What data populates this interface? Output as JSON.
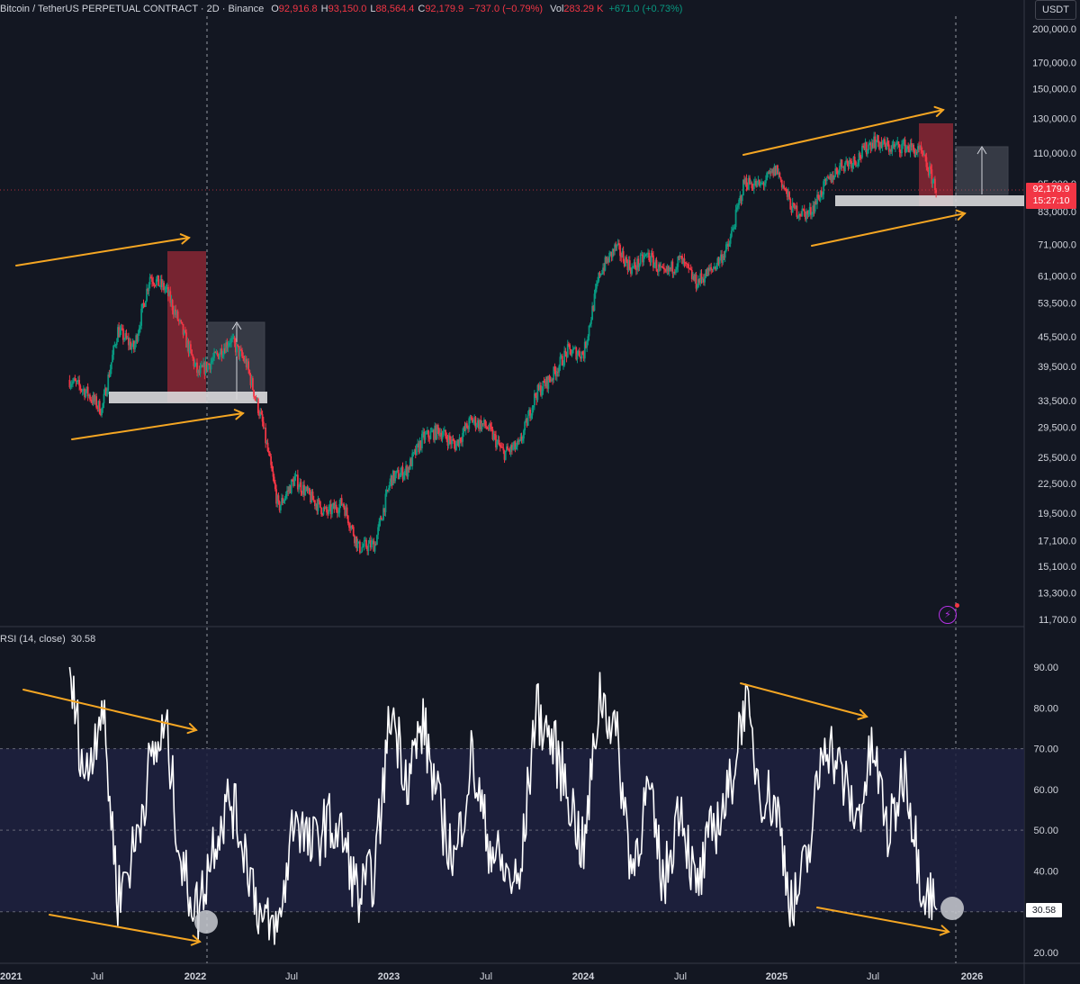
{
  "header": {
    "symbol": "Bitcoin / TetherUS PERPETUAL CONTRACT · 2D · Binance",
    "o_label": "O",
    "o_value": "92,916.8",
    "h_label": "H",
    "h_value": "93,150.0",
    "l_label": "L",
    "l_value": "88,564.4",
    "c_label": "C",
    "c_value": "92,179.9",
    "change": "−737.0 (−0.79%)",
    "vol_label": "Vol",
    "vol_value": "283.29 K",
    "vol_change": "+671.0 (+0.73%)"
  },
  "currency": "USDT",
  "last_price": {
    "price": "92,179.9",
    "countdown": "15:27:10"
  },
  "rsi_label": {
    "name": "RSI (14, close)",
    "value": "30.58"
  },
  "rsi_badge": "30.58",
  "colors": {
    "background": "#131722",
    "up": "#089981",
    "down": "#f23645",
    "rsi_line": "#ffffff",
    "rsi_band": "#1e2140",
    "arrow": "#f5a623",
    "grid_line": "#363a45"
  },
  "chart_data": [
    {
      "type": "line",
      "title": "",
      "scale": "log",
      "ylim": [
        11700,
        200000
      ],
      "y_ticks": [
        "200,000.0",
        "170,000.0",
        "150,000.0",
        "130,000.0",
        "110,000.0",
        "95,000.0",
        "83,000.0",
        "71,000.0",
        "61,000.0",
        "53,500.0",
        "45,500.0",
        "39,500.0",
        "33,500.0",
        "29,500.0",
        "25,500.0",
        "22,500.0",
        "19,500.0",
        "17,100.0",
        "15,100.0",
        "13,300.0",
        "11,700.0"
      ],
      "x_ticks": [
        "2021",
        "Jul",
        "2022",
        "Jul",
        "2023",
        "Jul",
        "2024",
        "Jul",
        "2025",
        "Jul",
        "2026"
      ],
      "series": [
        {
          "values_note": "approximate BTC price path (candles rendered as a price line)",
          "x": [
            "2021-05",
            "2021-06",
            "2021-07",
            "2021-08",
            "2021-09",
            "2021-10",
            "2021-11",
            "2021-12",
            "2022-01",
            "2022-02",
            "2022-03",
            "2022-04",
            "2022-05",
            "2022-06",
            "2022-07",
            "2022-08",
            "2022-09",
            "2022-10",
            "2022-11",
            "2022-12",
            "2023-01",
            "2023-02",
            "2023-03",
            "2023-04",
            "2023-05",
            "2023-06",
            "2023-07",
            "2023-08",
            "2023-09",
            "2023-10",
            "2023-11",
            "2023-12",
            "2024-01",
            "2024-02",
            "2024-03",
            "2024-04",
            "2024-05",
            "2024-06",
            "2024-07",
            "2024-08",
            "2024-09",
            "2024-10",
            "2024-11",
            "2024-12",
            "2025-01",
            "2025-02",
            "2025-03",
            "2025-04",
            "2025-05",
            "2025-06",
            "2025-07",
            "2025-08",
            "2025-09",
            "2025-10",
            "2025-11"
          ],
          "values": [
            37000,
            35000,
            32000,
            47000,
            43000,
            61000,
            57000,
            47000,
            38000,
            41000,
            45000,
            40000,
            30000,
            20000,
            23000,
            21000,
            19500,
            20500,
            16500,
            16800,
            23000,
            24000,
            28000,
            29000,
            27000,
            30500,
            29500,
            26000,
            27000,
            34500,
            37500,
            42500,
            42000,
            62000,
            70000,
            63000,
            67500,
            61000,
            66000,
            59000,
            63000,
            70000,
            96000,
            94000,
            102000,
            84000,
            82000,
            94000,
            104000,
            107000,
            117000,
            113000,
            114000,
            110000,
            92180
          ]
        }
      ],
      "annotations": [
        "higher-high arrow 2021",
        "higher-low arrow 2021",
        "higher-high arrow 2025",
        "higher-low arrow 2025",
        "drop/rebound boxes"
      ]
    },
    {
      "type": "line",
      "title": "RSI (14, close)",
      "ylim": [
        20,
        92
      ],
      "y_ticks": [
        "90.00",
        "80.00",
        "70.00",
        "60.00",
        "50.00",
        "40.00",
        "30.00",
        "20.00"
      ],
      "band": [
        30,
        70
      ],
      "series": [
        {
          "name": "RSI",
          "x": [
            "2021-05",
            "2021-06",
            "2021-07",
            "2021-08",
            "2021-09",
            "2021-10",
            "2021-11",
            "2021-12",
            "2022-01",
            "2022-02",
            "2022-03",
            "2022-04",
            "2022-05",
            "2022-06",
            "2022-07",
            "2022-08",
            "2022-09",
            "2022-10",
            "2022-11",
            "2022-12",
            "2023-01",
            "2023-02",
            "2023-03",
            "2023-04",
            "2023-05",
            "2023-06",
            "2023-07",
            "2023-08",
            "2023-09",
            "2023-10",
            "2023-11",
            "2023-12",
            "2024-01",
            "2024-02",
            "2024-03",
            "2024-04",
            "2024-05",
            "2024-06",
            "2024-07",
            "2024-08",
            "2024-09",
            "2024-10",
            "2024-11",
            "2024-12",
            "2025-01",
            "2025-02",
            "2025-03",
            "2025-04",
            "2025-05",
            "2025-06",
            "2025-07",
            "2025-08",
            "2025-09",
            "2025-10",
            "2025-11"
          ],
          "values": [
            88,
            62,
            82,
            34,
            45,
            66,
            75,
            40,
            30,
            48,
            58,
            44,
            27,
            25,
            55,
            45,
            52,
            48,
            33,
            40,
            80,
            63,
            76,
            55,
            42,
            68,
            48,
            40,
            36,
            80,
            72,
            60,
            44,
            84,
            74,
            40,
            60,
            36,
            58,
            34,
            50,
            58,
            82,
            60,
            56,
            30,
            44,
            74,
            64,
            52,
            70,
            48,
            66,
            38,
            30.58
          ]
        }
      ]
    }
  ]
}
